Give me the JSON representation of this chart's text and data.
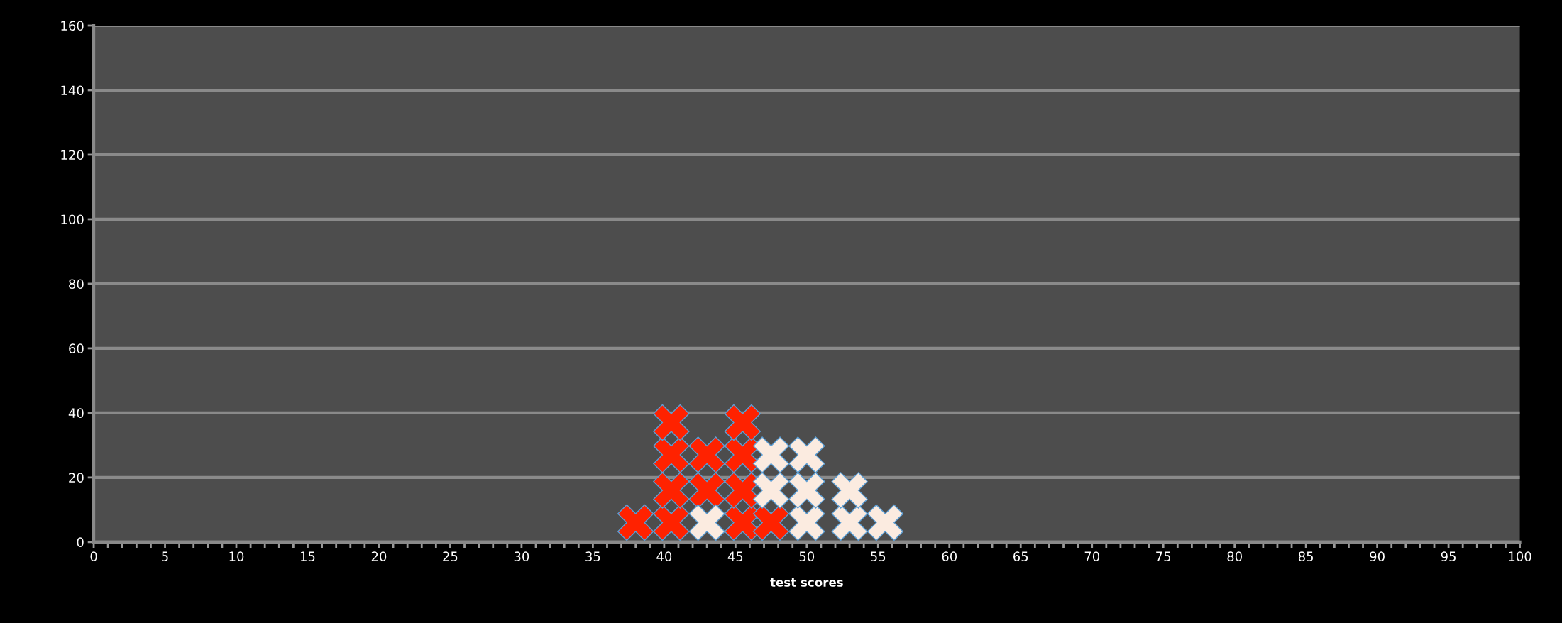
{
  "chart_data": {
    "type": "scatter",
    "xlabel": "test scores",
    "marker": "cross",
    "grid": "y",
    "xlim": [
      0,
      100
    ],
    "ylim": [
      0,
      160
    ],
    "xticks": [
      0,
      {
        "value": 1,
        "label": null
      },
      {
        "value": 2,
        "label": null
      },
      {
        "value": 3,
        "label": null
      },
      {
        "value": 4,
        "label": null
      },
      5,
      {
        "value": 6,
        "label": null
      },
      {
        "value": 7,
        "label": null
      },
      {
        "value": 8,
        "label": null
      },
      {
        "value": 9,
        "label": null
      },
      10,
      {
        "value": 11,
        "label": null
      },
      {
        "value": 12,
        "label": null
      },
      {
        "value": 13,
        "label": null
      },
      {
        "value": 14,
        "label": null
      },
      15,
      {
        "value": 16,
        "label": null
      },
      {
        "value": 17,
        "label": null
      },
      {
        "value": 18,
        "label": null
      },
      {
        "value": 19,
        "label": null
      },
      20,
      {
        "value": 21,
        "label": null
      },
      {
        "value": 22,
        "label": null
      },
      {
        "value": 23,
        "label": null
      },
      {
        "value": 24,
        "label": null
      },
      25,
      {
        "value": 26,
        "label": null
      },
      {
        "value": 27,
        "label": null
      },
      {
        "value": 28,
        "label": null
      },
      {
        "value": 29,
        "label": null
      },
      30,
      {
        "value": 31,
        "label": null
      },
      {
        "value": 32,
        "label": null
      },
      {
        "value": 33,
        "label": null
      },
      {
        "value": 34,
        "label": null
      },
      35,
      {
        "value": 36,
        "label": null
      },
      {
        "value": 37,
        "label": null
      },
      {
        "value": 38,
        "label": null
      },
      {
        "value": 39,
        "label": null
      },
      40,
      {
        "value": 41,
        "label": null
      },
      {
        "value": 42,
        "label": null
      },
      {
        "value": 43,
        "label": null
      },
      {
        "value": 44,
        "label": null
      },
      45,
      {
        "value": 46,
        "label": null
      },
      {
        "value": 47,
        "label": null
      },
      {
        "value": 48,
        "label": null
      },
      {
        "value": 49,
        "label": null
      },
      50,
      {
        "value": 51,
        "label": null
      },
      {
        "value": 52,
        "label": null
      },
      {
        "value": 53,
        "label": null
      },
      {
        "value": 54,
        "label": null
      },
      55,
      {
        "value": 56,
        "label": null
      },
      {
        "value": 57,
        "label": null
      },
      {
        "value": 58,
        "label": null
      },
      {
        "value": 59,
        "label": null
      },
      60,
      {
        "value": 61,
        "label": null
      },
      {
        "value": 62,
        "label": null
      },
      {
        "value": 63,
        "label": null
      },
      {
        "value": 64,
        "label": null
      },
      65,
      {
        "value": 66,
        "label": null
      },
      {
        "value": 67,
        "label": null
      },
      {
        "value": 68,
        "label": null
      },
      {
        "value": 69,
        "label": null
      },
      70,
      {
        "value": 71,
        "label": null
      },
      {
        "value": 72,
        "label": null
      },
      {
        "value": 73,
        "label": null
      },
      {
        "value": 74,
        "label": null
      },
      75,
      {
        "value": 76,
        "label": null
      },
      {
        "value": 77,
        "label": null
      },
      {
        "value": 78,
        "label": null
      },
      {
        "value": 79,
        "label": null
      },
      80,
      {
        "value": 81,
        "label": null
      },
      {
        "value": 82,
        "label": null
      },
      {
        "value": 83,
        "label": null
      },
      {
        "value": 84,
        "label": null
      },
      85,
      {
        "value": 86,
        "label": null
      },
      {
        "value": 87,
        "label": null
      },
      {
        "value": 88,
        "label": null
      },
      {
        "value": 89,
        "label": null
      },
      90,
      {
        "value": 91,
        "label": null
      },
      {
        "value": 92,
        "label": null
      },
      {
        "value": 93,
        "label": null
      },
      {
        "value": 94,
        "label": null
      },
      95,
      {
        "value": 96,
        "label": null
      },
      {
        "value": 97,
        "label": null
      },
      {
        "value": 98,
        "label": null
      },
      {
        "value": 99,
        "label": null
      },
      100
    ],
    "yticks": [
      0,
      20,
      40,
      60,
      80,
      100,
      120,
      140,
      160
    ],
    "series": [
      {
        "color": "#ff2200",
        "x": [
          38,
          40.5,
          40.5,
          40.5,
          40.5,
          43,
          43,
          45.5,
          45.5,
          45.5,
          45.5,
          47.5
        ],
        "values": [
          6,
          6,
          16,
          27,
          37,
          16,
          27,
          6,
          16,
          27,
          37,
          6
        ]
      },
      {
        "color": "#fbebe0",
        "x": [
          43,
          47.5,
          47.5,
          50,
          50,
          50,
          53,
          53,
          55.5
        ],
        "values": [
          6,
          16,
          27,
          6,
          16,
          27,
          6,
          16,
          6
        ]
      }
    ]
  }
}
